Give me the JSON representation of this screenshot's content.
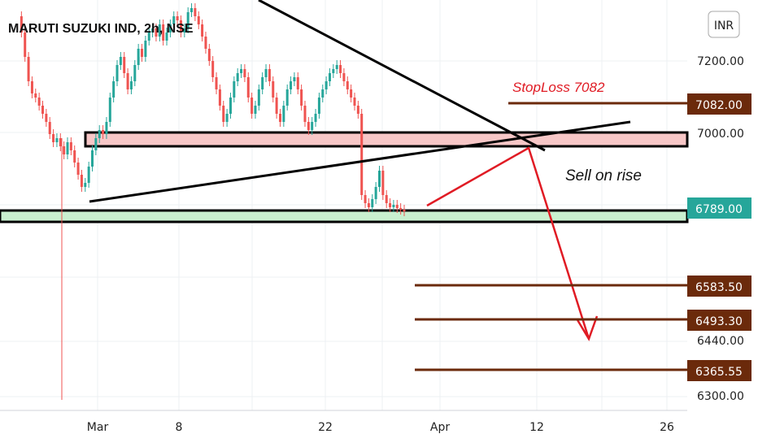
{
  "chart_data": {
    "type": "candlestick",
    "title": "MARUTI SUZUKI IND, 2h, NSE",
    "currency": "INR",
    "y_ticks": [
      7200.0,
      7000.0,
      6440.0,
      6300.0
    ],
    "ylim": [
      6285,
      7385
    ],
    "x_ticks": [
      "Mar",
      "8",
      "22",
      "Apr",
      "12",
      "26"
    ],
    "last_price": 6789.0,
    "price_levels": [
      {
        "label": "7082.00",
        "value": 7082.0
      },
      {
        "label": "6583.50",
        "value": 6583.5
      },
      {
        "label": "6493.30",
        "value": 6493.3
      },
      {
        "label": "6365.55",
        "value": 6365.55
      }
    ],
    "annotations": {
      "stoploss": "StopLoss 7082",
      "sell": "Sell on rise"
    },
    "zones": [
      {
        "name": "resistance",
        "low": 6955,
        "high": 6995,
        "color": "#f7c7c7"
      },
      {
        "name": "support",
        "low": 6765,
        "high": 6790,
        "color": "#c9f0cf"
      }
    ],
    "colors": {
      "up": "#26a69a",
      "down": "#ef5350",
      "last_price_tag": "#26a69a",
      "level_tag": "#6b2a0b",
      "arrow": "#e01b24"
    }
  }
}
